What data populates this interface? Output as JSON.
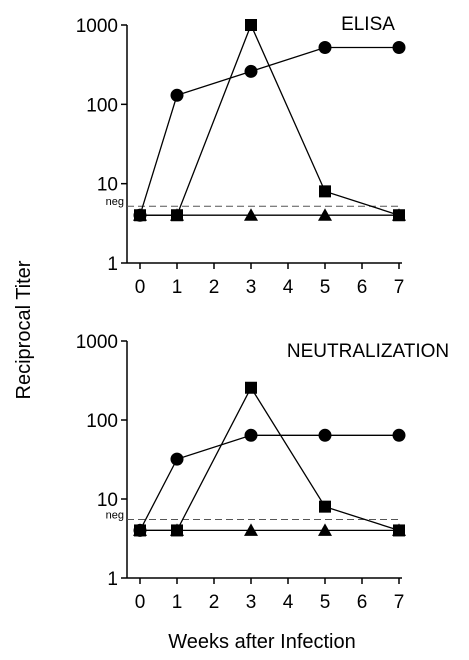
{
  "figure": {
    "ylabel": "Reciprocal Titer",
    "xlabel": "Weeks after Infection"
  },
  "chart_data": [
    {
      "type": "line",
      "title": "ELISA",
      "yscale": "log",
      "ylim": [
        1,
        1000
      ],
      "xlim": [
        0,
        7
      ],
      "yticks": [
        "1",
        "10",
        "100",
        "1000"
      ],
      "yticks_values": [
        1,
        10,
        100,
        1000
      ],
      "xticks": [
        "0",
        "1",
        "2",
        "3",
        "4",
        "5",
        "6",
        "7"
      ],
      "neg_label": "neg",
      "neg_value": 5.2,
      "series": [
        {
          "marker": "circle",
          "x": [
            0,
            1,
            3,
            5,
            7
          ],
          "y": [
            4,
            130,
            260,
            520,
            520
          ]
        },
        {
          "marker": "square",
          "x": [
            0,
            1,
            3,
            5,
            7
          ],
          "y": [
            4,
            4,
            1000,
            8,
            4
          ]
        },
        {
          "marker": "triangle",
          "x": [
            0,
            1,
            3,
            5,
            7
          ],
          "y": [
            4,
            4,
            4,
            4,
            4
          ]
        }
      ]
    },
    {
      "type": "line",
      "title": "NEUTRALIZATION",
      "yscale": "log",
      "ylim": [
        1,
        1000
      ],
      "xlim": [
        0,
        7
      ],
      "yticks": [
        "1",
        "10",
        "100",
        "1000"
      ],
      "yticks_values": [
        1,
        10,
        100,
        1000
      ],
      "xticks": [
        "0",
        "1",
        "2",
        "3",
        "4",
        "5",
        "6",
        "7"
      ],
      "neg_label": "neg",
      "neg_value": 5.5,
      "series": [
        {
          "marker": "circle",
          "x": [
            0,
            1,
            3,
            5,
            7
          ],
          "y": [
            4,
            32,
            64,
            64,
            64
          ]
        },
        {
          "marker": "square",
          "x": [
            0,
            1,
            3,
            5,
            7
          ],
          "y": [
            4,
            4,
            256,
            8,
            4
          ]
        },
        {
          "marker": "triangle",
          "x": [
            0,
            1,
            3,
            5,
            7
          ],
          "y": [
            4,
            4,
            4,
            4,
            4
          ]
        }
      ]
    }
  ]
}
